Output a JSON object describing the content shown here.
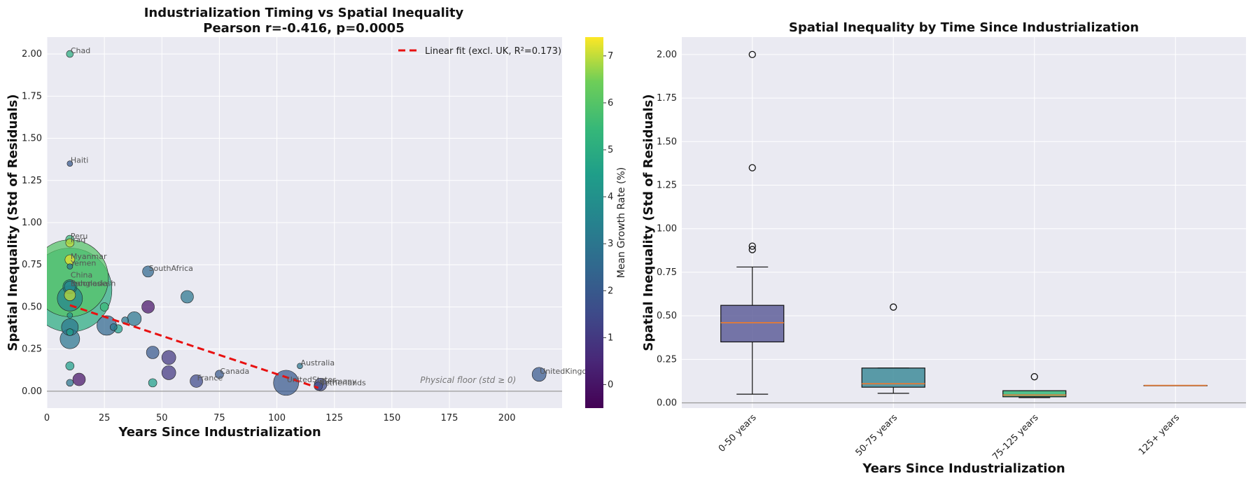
{
  "chart_data": [
    {
      "type": "scatter",
      "title": "Industrialization Timing vs Spatial Inequality",
      "subtitle": "Pearson r=-0.416, p=0.0005",
      "xlabel": "Years Since Industrialization",
      "ylabel": "Spatial Inequality (Std of Residuals)",
      "xlim": [
        0,
        224
      ],
      "ylim": [
        -0.1,
        2.1
      ],
      "xticks": [
        "0",
        "25",
        "50",
        "75",
        "100",
        "125",
        "150",
        "175",
        "200"
      ],
      "yticks": [
        "0.00",
        "0.25",
        "0.50",
        "0.75",
        "1.00",
        "1.25",
        "1.50",
        "1.75",
        "2.00"
      ],
      "grid": true,
      "legend": {
        "position": "top-right",
        "label": "Linear fit (excl. UK, R²=0.173)"
      },
      "colorbar": {
        "label": "Mean Growth Rate (%)",
        "range": [
          -0.5,
          7.4
        ],
        "ticks": [
          "0",
          "1",
          "2",
          "3",
          "4",
          "5",
          "6",
          "7"
        ],
        "colormap": "viridis"
      },
      "fit_line": {
        "x": [
          10,
          118
        ],
        "y": [
          0.51,
          0.02
        ],
        "color": "#e81010"
      },
      "reference_line": {
        "y": 0,
        "label": "Physical floor (std ≥ 0)"
      },
      "points": [
        {
          "x": 10,
          "y": 2.0,
          "size": 5,
          "growth": 5.0,
          "label": "Chad"
        },
        {
          "x": 10,
          "y": 1.35,
          "size": 4,
          "growth": 2.0,
          "label": "Haiti"
        },
        {
          "x": 10,
          "y": 0.9,
          "size": 6,
          "growth": 5.5,
          "label": "Peru"
        },
        {
          "x": 10,
          "y": 0.88,
          "size": 6,
          "growth": 7.0,
          "label": "Iraq"
        },
        {
          "x": 10,
          "y": 0.78,
          "size": 7,
          "growth": 7.3,
          "label": "Myanmar"
        },
        {
          "x": 10,
          "y": 0.74,
          "size": 4,
          "growth": 3.0,
          "label": "Yemen"
        },
        {
          "x": 10,
          "y": 0.67,
          "size": 55,
          "growth": 6.0,
          "label": "China"
        },
        {
          "x": 10,
          "y": 0.6,
          "size": 60,
          "growth": 5.0,
          "label": ""
        },
        {
          "x": 10,
          "y": 0.62,
          "size": 10,
          "growth": 4.0,
          "label": "Bangladesh"
        },
        {
          "x": 10,
          "y": 0.62,
          "size": 8,
          "growth": 3.5,
          "label": "Indonesia"
        },
        {
          "x": 10,
          "y": 0.57,
          "size": 8,
          "growth": 7.0,
          "label": ""
        },
        {
          "x": 10,
          "y": 0.55,
          "size": 18,
          "growth": 3.5,
          "label": ""
        },
        {
          "x": 10,
          "y": 0.45,
          "size": 4,
          "growth": 4.0,
          "label": ""
        },
        {
          "x": 10,
          "y": 0.38,
          "size": 12,
          "growth": 3.0,
          "label": ""
        },
        {
          "x": 10,
          "y": 0.35,
          "size": 5,
          "growth": 4.5,
          "label": ""
        },
        {
          "x": 10,
          "y": 0.31,
          "size": 14,
          "growth": 3.0,
          "label": ""
        },
        {
          "x": 10,
          "y": 0.15,
          "size": 6,
          "growth": 4.5,
          "label": ""
        },
        {
          "x": 10,
          "y": 0.05,
          "size": 5,
          "growth": 3.0,
          "label": ""
        },
        {
          "x": 14,
          "y": 0.07,
          "size": 9,
          "growth": 0.0,
          "label": ""
        },
        {
          "x": 25,
          "y": 0.5,
          "size": 6,
          "growth": 5.5,
          "label": ""
        },
        {
          "x": 26,
          "y": 0.39,
          "size": 14,
          "growth": 2.5,
          "label": ""
        },
        {
          "x": 29,
          "y": 0.38,
          "size": 5,
          "growth": 3.0,
          "label": ""
        },
        {
          "x": 31,
          "y": 0.37,
          "size": 6,
          "growth": 4.5,
          "label": ""
        },
        {
          "x": 34,
          "y": 0.42,
          "size": 5,
          "growth": 3.0,
          "label": ""
        },
        {
          "x": 38,
          "y": 0.43,
          "size": 10,
          "growth": 3.0,
          "label": ""
        },
        {
          "x": 44,
          "y": 0.5,
          "size": 9,
          "growth": 0.0,
          "label": ""
        },
        {
          "x": 44,
          "y": 0.71,
          "size": 8,
          "growth": 2.5,
          "label": "SouthAfrica"
        },
        {
          "x": 46,
          "y": 0.23,
          "size": 9,
          "growth": 2.0,
          "label": ""
        },
        {
          "x": 46,
          "y": 0.05,
          "size": 6,
          "growth": 4.5,
          "label": ""
        },
        {
          "x": 53,
          "y": 0.2,
          "size": 10,
          "growth": 1.0,
          "label": ""
        },
        {
          "x": 53,
          "y": 0.11,
          "size": 10,
          "growth": 1.0,
          "label": ""
        },
        {
          "x": 61,
          "y": 0.56,
          "size": 9,
          "growth": 3.0,
          "label": ""
        },
        {
          "x": 65,
          "y": 0.06,
          "size": 9,
          "growth": 1.5,
          "label": "France"
        },
        {
          "x": 75,
          "y": 0.1,
          "size": 6,
          "growth": 2.0,
          "label": "Canada"
        },
        {
          "x": 104,
          "y": 0.05,
          "size": 18,
          "growth": 2.0,
          "label": "UnitedStates"
        },
        {
          "x": 110,
          "y": 0.15,
          "size": 4,
          "growth": 3.0,
          "label": "Australia"
        },
        {
          "x": 119,
          "y": 0.04,
          "size": 9,
          "growth": 1.5,
          "label": "Germany"
        },
        {
          "x": 118,
          "y": 0.03,
          "size": 6,
          "growth": 1.5,
          "label": "Netherlands"
        },
        {
          "x": 214,
          "y": 0.1,
          "size": 10,
          "growth": 2.0,
          "label": "UnitedKingdom"
        }
      ]
    },
    {
      "type": "box",
      "title": "Spatial Inequality by Time Since Industrialization",
      "xlabel": "Years Since Industrialization",
      "ylabel": "Spatial Inequality (Std of Residuals)",
      "ylim": [
        -0.03,
        2.1
      ],
      "yticks": [
        "0.00",
        "0.25",
        "0.50",
        "0.75",
        "1.00",
        "1.25",
        "1.50",
        "1.75",
        "2.00"
      ],
      "grid": true,
      "categories": [
        "0-50 years",
        "50-75 years",
        "75-125 years",
        "125+ years"
      ],
      "boxes": [
        {
          "whislo": 0.05,
          "q1": 0.35,
          "med": 0.46,
          "q3": 0.56,
          "whishi": 0.78,
          "fliers": [
            0.88,
            0.9,
            1.35,
            2.0
          ],
          "color": "#5f5f9a"
        },
        {
          "whislo": 0.055,
          "q1": 0.09,
          "med": 0.11,
          "q3": 0.2,
          "whishi": 0.2,
          "fliers": [
            0.55
          ],
          "color": "#3f8c9a"
        },
        {
          "whislo": 0.03,
          "q1": 0.035,
          "med": 0.045,
          "q3": 0.07,
          "whishi": 0.07,
          "fliers": [
            0.15
          ],
          "color": "#35b779"
        },
        {
          "whislo": 0.1,
          "q1": 0.1,
          "med": 0.1,
          "q3": 0.1,
          "whishi": 0.1,
          "fliers": [],
          "color": "#5ec962"
        }
      ],
      "median_color": "#e07b39"
    }
  ]
}
